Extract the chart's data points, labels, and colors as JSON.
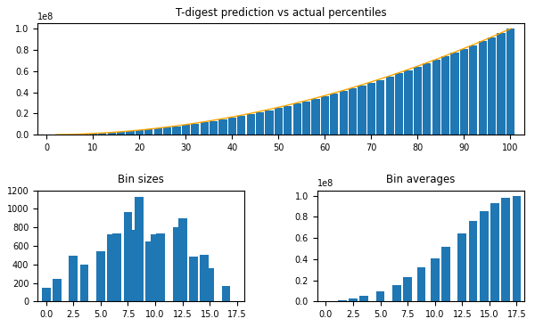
{
  "title_top": "T-digest prediction vs actual percentiles",
  "title_bin_sizes": "Bin sizes",
  "title_bin_avg": "Bin averages",
  "top_bar_color": "#1f77b4",
  "top_line_color": "orange",
  "bottom_bar_color": "#1f77b4",
  "top_xlabel_ticks": [
    0,
    10,
    20,
    30,
    40,
    50,
    60,
    70,
    80,
    90,
    100
  ],
  "bin_sizes": [
    150,
    245,
    497,
    395,
    540,
    725,
    730,
    965,
    770,
    1125,
    650,
    725,
    730,
    805,
    895,
    485,
    505,
    355,
    170
  ],
  "bin_sizes_x": [
    0.0,
    1.0,
    2.5,
    3.5,
    5.0,
    6.0,
    6.5,
    7.5,
    8.0,
    8.5,
    9.5,
    10.0,
    10.5,
    12.0,
    12.5,
    13.5,
    14.5,
    15.0,
    16.5
  ],
  "bin_avg_values": [
    500000,
    1500000,
    2500000,
    5000000,
    9500000,
    15500000,
    23000000,
    32500000,
    41000000,
    51500000,
    64500000,
    76000000,
    85500000,
    93000000,
    98000000,
    100000000
  ],
  "bin_avg_x": [
    0.25,
    1.5,
    2.5,
    3.5,
    5.0,
    6.5,
    7.5,
    8.75,
    10.0,
    11.0,
    12.5,
    13.5,
    14.5,
    15.5,
    16.5,
    17.5
  ],
  "bottom_xticks": [
    0.0,
    2.5,
    5.0,
    7.5,
    10.0,
    12.5,
    15.0,
    17.5
  ]
}
